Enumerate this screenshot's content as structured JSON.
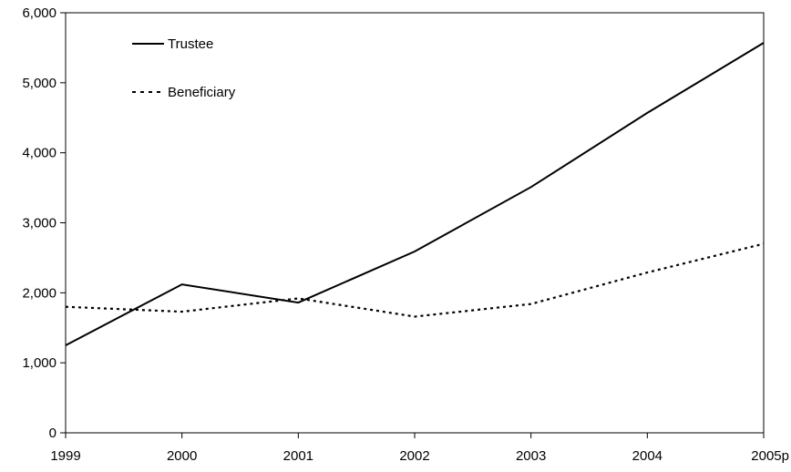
{
  "chart_data": {
    "type": "line",
    "title": "",
    "xlabel": "",
    "ylabel": "",
    "categories": [
      "1999",
      "2000",
      "2001",
      "2002",
      "2003",
      "2004",
      "2005p"
    ],
    "ylim": [
      0,
      6000
    ],
    "yticks": [
      "0",
      "1,000",
      "2,000",
      "3,000",
      "4,000",
      "5,000",
      "6,000"
    ],
    "grid": false,
    "legend_position": "top-left",
    "series": [
      {
        "name": "Trustee",
        "style": "solid",
        "color": "#000000",
        "values": [
          1250,
          2120,
          1860,
          2590,
          3510,
          4570,
          5570
        ]
      },
      {
        "name": "Beneficiary",
        "style": "dotted",
        "color": "#000000",
        "values": [
          1800,
          1730,
          1920,
          1660,
          1840,
          2290,
          2700
        ]
      }
    ]
  }
}
